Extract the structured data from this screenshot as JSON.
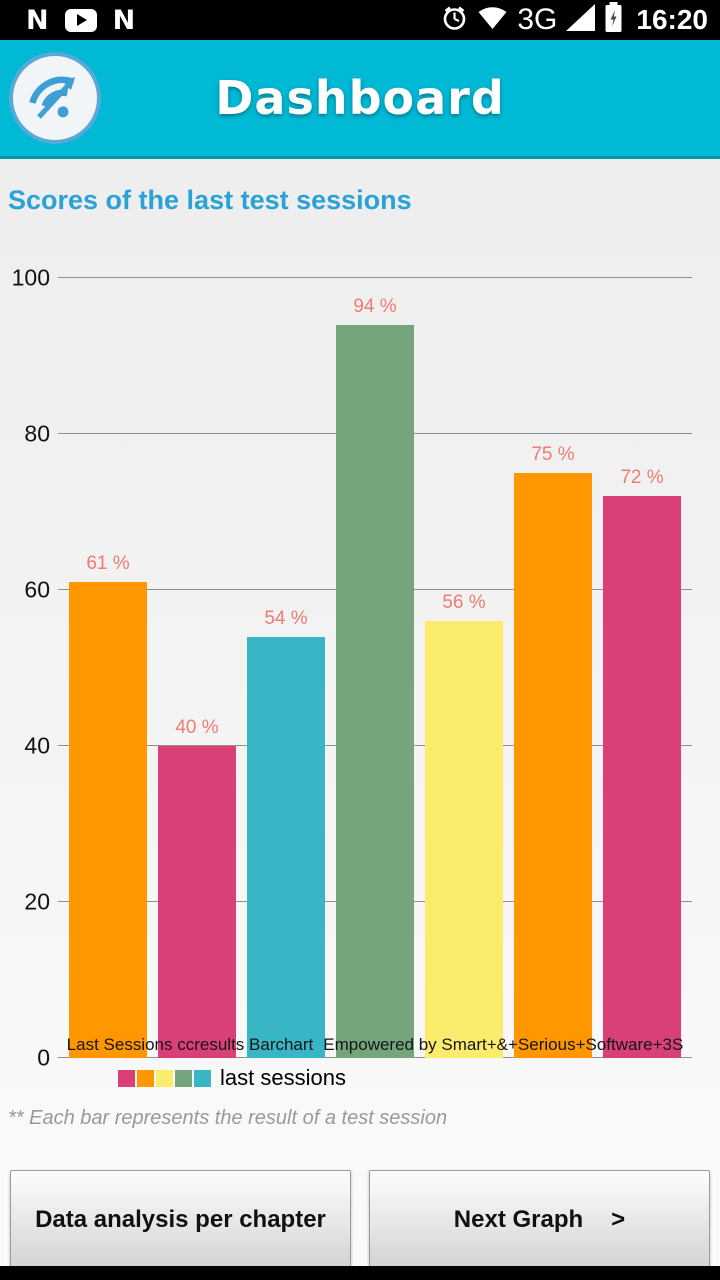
{
  "theme": {
    "header_bg": "#00b9d5",
    "section_title_color": "#2aa2d6",
    "value_label_color": "#ef7b72",
    "status_bar_bg": "#000000"
  },
  "status_bar": {
    "time": "16:20",
    "network_label": "3G",
    "notif_letters": [
      "N",
      "N"
    ]
  },
  "header": {
    "title": "Dashboard"
  },
  "section_title": "Scores of the last test sessions",
  "chart_data": {
    "type": "bar",
    "title": "Scores of the last test sessions",
    "values": [
      61,
      40,
      54,
      94,
      56,
      75,
      72
    ],
    "bar_labels": [
      "61 %",
      "40 %",
      "54 %",
      "94 %",
      "56 %",
      "75 %",
      "72 %"
    ],
    "bar_colors": [
      "#ff9800",
      "#d94078",
      "#38b6c6",
      "#74a57c",
      "#fcec6d",
      "#ff9800",
      "#d94078"
    ],
    "ylim": [
      0,
      100
    ],
    "y_ticks": [
      0,
      20,
      40,
      60,
      80,
      100
    ],
    "grid": true,
    "xlabel": "",
    "ylabel": "",
    "legend": {
      "position": "bottom-left",
      "label": "last sessions",
      "swatch_colors": [
        "#d94078",
        "#ff9800",
        "#fcec6d",
        "#74a57c",
        "#38b6c6"
      ]
    },
    "watermark_parts": [
      "Last Sessions ccresults Barchart",
      "Empowered by Smart+&+Serious+Software+3S"
    ]
  },
  "footnote": "** Each bar represents the result of a test session",
  "buttons": {
    "left_label": "Data analysis per chapter",
    "right_label": "Next Graph",
    "right_chevron": ">"
  }
}
